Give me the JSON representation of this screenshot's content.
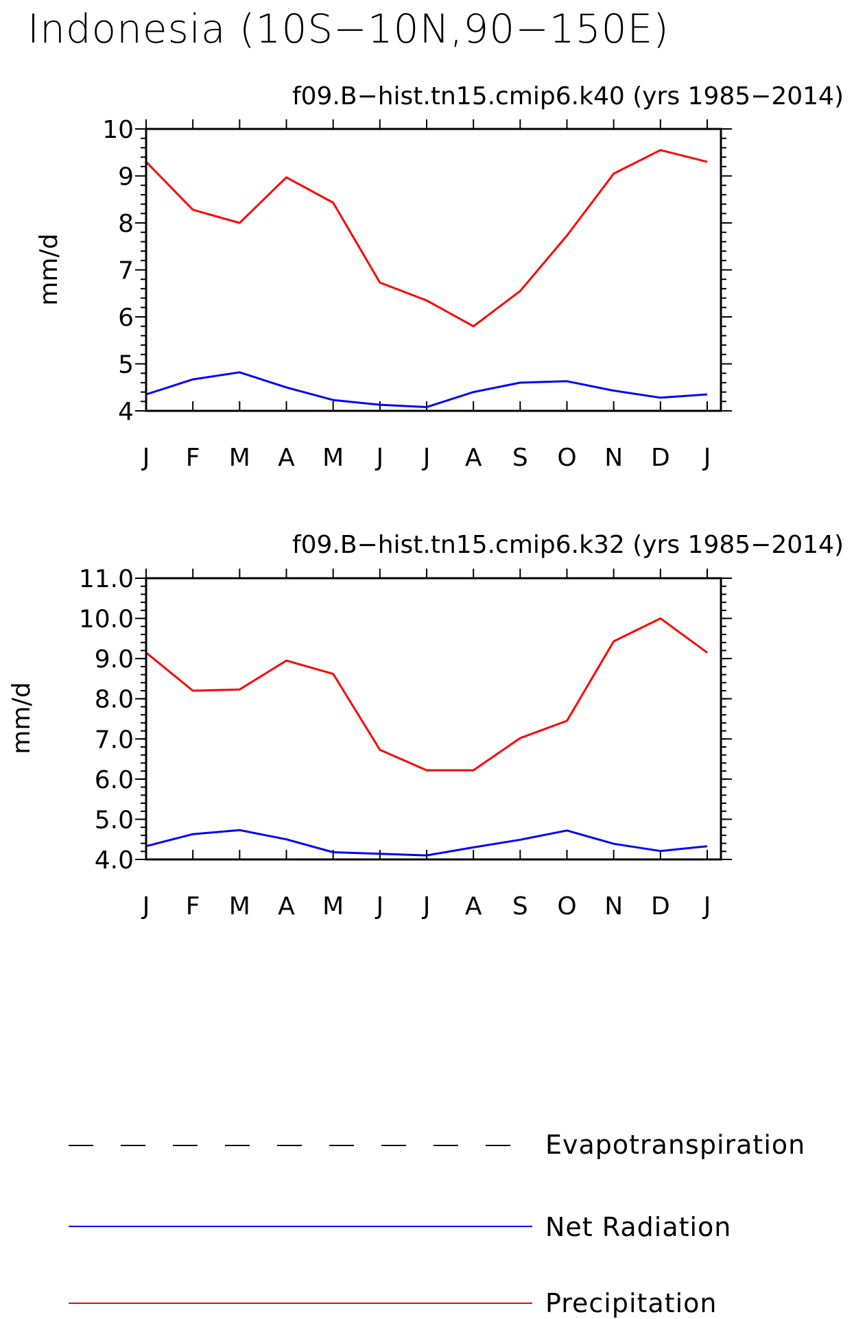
{
  "figure": {
    "title": "Indonesia (10S−10N,90−150E)"
  },
  "chart_data": [
    {
      "type": "line",
      "title": "f09.B−hist.tn15.cmip6.k40 (yrs 1985−2014)",
      "xlabel": "",
      "ylabel": "mm/d",
      "categories": [
        "J",
        "F",
        "M",
        "A",
        "M",
        "J",
        "J",
        "A",
        "S",
        "O",
        "N",
        "D",
        "J"
      ],
      "ylim": [
        4,
        10
      ],
      "yticks": [
        4,
        5,
        6,
        7,
        8,
        9,
        10
      ],
      "ytick_labels": [
        "4",
        "5",
        "6",
        "7",
        "8",
        "9",
        "10"
      ],
      "grid": false,
      "series": [
        {
          "name": "Precipitation",
          "color": "#ff0000",
          "values": [
            9.3,
            8.28,
            8.0,
            8.97,
            8.43,
            6.73,
            6.35,
            5.8,
            6.55,
            7.73,
            9.05,
            9.55,
            9.3
          ]
        },
        {
          "name": "Net Radiation",
          "color": "#0000ff",
          "values": [
            4.35,
            4.67,
            4.82,
            4.5,
            4.23,
            4.13,
            4.08,
            4.4,
            4.6,
            4.63,
            4.43,
            4.28,
            4.35
          ]
        }
      ]
    },
    {
      "type": "line",
      "title": "f09.B−hist.tn15.cmip6.k32 (yrs 1985−2014)",
      "xlabel": "",
      "ylabel": "mm/d",
      "categories": [
        "J",
        "F",
        "M",
        "A",
        "M",
        "J",
        "J",
        "A",
        "S",
        "O",
        "N",
        "D",
        "J"
      ],
      "ylim": [
        4,
        11
      ],
      "yticks": [
        4,
        5,
        6,
        7,
        8,
        9,
        10,
        11
      ],
      "ytick_labels": [
        "4.0",
        "5.0",
        "6.0",
        "7.0",
        "8.0",
        "9.0",
        "10.0",
        "11.0"
      ],
      "grid": false,
      "series": [
        {
          "name": "Precipitation",
          "color": "#ff0000",
          "values": [
            9.15,
            8.2,
            8.23,
            8.95,
            8.62,
            6.73,
            6.22,
            6.22,
            7.02,
            7.45,
            9.43,
            10.0,
            9.15
          ]
        },
        {
          "name": "Net Radiation",
          "color": "#0000ff",
          "values": [
            4.33,
            4.63,
            4.73,
            4.5,
            4.18,
            4.14,
            4.1,
            4.3,
            4.49,
            4.72,
            4.39,
            4.21,
            4.33
          ]
        }
      ]
    }
  ],
  "legend": {
    "position": "bottom",
    "items": [
      {
        "label": "Evapotranspiration",
        "color": "#000000",
        "style": "dashed"
      },
      {
        "label": "Net Radiation",
        "color": "#0000ff",
        "style": "solid"
      },
      {
        "label": "Precipitation",
        "color": "#ff0000",
        "style": "solid"
      }
    ]
  }
}
